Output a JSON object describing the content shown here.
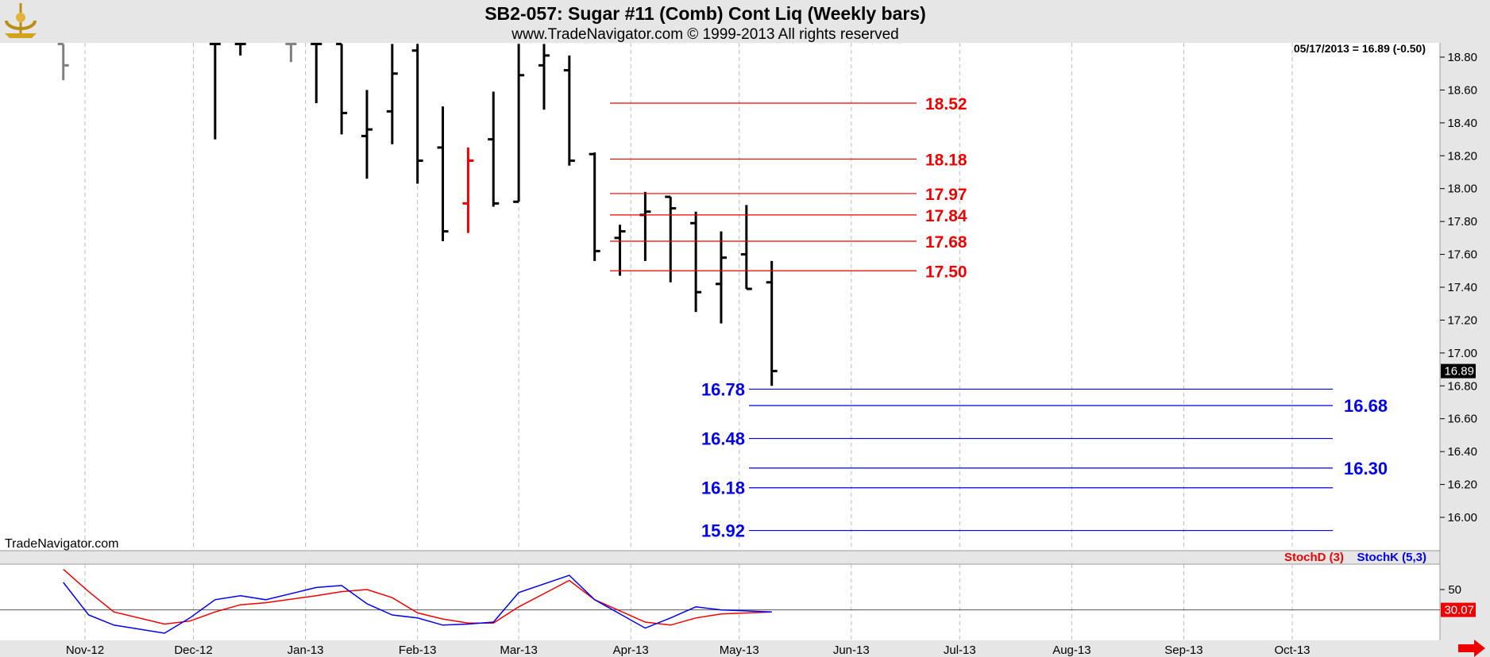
{
  "header": {
    "title": "SB2-057:  Sugar #11 (Comb) Cont Liq  (Weekly bars)",
    "subtitle": "www.TradeNavigator.com © 1999-2013 All rights reserved"
  },
  "watermark": "TradeNavigator.com",
  "last_quote": "05/17/2013 = 16.89 (-0.50)",
  "chart_data": [
    {
      "type": "ohlc",
      "title": "SB2-057:  Sugar #11 (Comb) Cont Liq  (Weekly bars)",
      "ylim": [
        15.85,
        18.88
      ],
      "y_ticks": [
        "18.80",
        "18.60",
        "18.40",
        "18.20",
        "18.00",
        "17.80",
        "17.60",
        "17.40",
        "17.20",
        "17.00",
        "16.80",
        "16.60",
        "16.40",
        "16.20",
        "16.00"
      ],
      "y_tick_values": [
        18.8,
        18.6,
        18.4,
        18.2,
        18.0,
        17.8,
        17.6,
        17.4,
        17.2,
        17.0,
        16.8,
        16.6,
        16.4,
        16.2,
        16.0
      ],
      "x_ticks": [
        "Nov-12",
        "Dec-12",
        "Jan-13",
        "Feb-13",
        "Mar-13",
        "Apr-13",
        "May-13",
        "Jun-13",
        "Jul-13",
        "Aug-13",
        "Sep-13",
        "Oct-13"
      ],
      "x_tick_dates": [
        "2012-11-01",
        "2012-12-01",
        "2013-01-01",
        "2013-02-01",
        "2013-03-01",
        "2013-04-01",
        "2013-05-01",
        "2013-06-01",
        "2013-07-01",
        "2013-08-01",
        "2013-09-01",
        "2013-10-01"
      ],
      "last_price_label": "16.89",
      "last_price": 16.89,
      "bars": [
        {
          "date": "2012-10-26",
          "high": 18.88,
          "low": 18.66,
          "open": 18.88,
          "close": 18.75,
          "color": "#808080"
        },
        {
          "date": "2012-12-07",
          "high": 18.88,
          "low": 18.3,
          "open": 18.88,
          "close": 18.88,
          "color": "#000000"
        },
        {
          "date": "2012-12-14",
          "high": 18.88,
          "low": 18.81,
          "open": 18.88,
          "close": 18.88,
          "color": "#000000"
        },
        {
          "date": "2012-12-28",
          "high": 18.88,
          "low": 18.77,
          "open": 18.88,
          "close": 18.88,
          "color": "#808080"
        },
        {
          "date": "2013-01-04",
          "high": 18.88,
          "low": 18.52,
          "open": 18.88,
          "close": 18.88,
          "color": "#000000"
        },
        {
          "date": "2013-01-11",
          "high": 18.88,
          "low": 18.33,
          "open": 18.88,
          "close": 18.46,
          "color": "#000000"
        },
        {
          "date": "2013-01-18",
          "high": 18.6,
          "low": 18.06,
          "open": 18.32,
          "close": 18.36,
          "color": "#000000"
        },
        {
          "date": "2013-01-25",
          "high": 18.88,
          "low": 18.27,
          "open": 18.47,
          "close": 18.7,
          "color": "#000000"
        },
        {
          "date": "2013-02-01",
          "high": 18.88,
          "low": 18.03,
          "open": 18.84,
          "close": 18.17,
          "color": "#000000"
        },
        {
          "date": "2013-02-08",
          "high": 18.5,
          "low": 17.68,
          "open": 18.25,
          "close": 17.74,
          "color": "#000000"
        },
        {
          "date": "2013-02-15",
          "high": 18.25,
          "low": 17.73,
          "open": 17.91,
          "close": 18.17,
          "color": "#ee0000"
        },
        {
          "date": "2013-02-22",
          "high": 18.59,
          "low": 17.89,
          "open": 18.3,
          "close": 17.91,
          "color": "#000000"
        },
        {
          "date": "2013-03-01",
          "high": 18.88,
          "low": 17.92,
          "open": 17.92,
          "close": 18.69,
          "color": "#000000"
        },
        {
          "date": "2013-03-08",
          "high": 18.88,
          "low": 18.48,
          "open": 18.75,
          "close": 18.81,
          "color": "#000000"
        },
        {
          "date": "2013-03-15",
          "high": 18.81,
          "low": 18.14,
          "open": 18.72,
          "close": 18.17,
          "color": "#000000"
        },
        {
          "date": "2013-03-22",
          "high": 18.22,
          "low": 17.56,
          "open": 18.21,
          "close": 17.62,
          "color": "#000000"
        },
        {
          "date": "2013-03-29",
          "high": 17.78,
          "low": 17.47,
          "open": 17.7,
          "close": 17.74,
          "color": "#000000"
        },
        {
          "date": "2013-04-05",
          "high": 17.98,
          "low": 17.56,
          "open": 17.84,
          "close": 17.86,
          "color": "#000000"
        },
        {
          "date": "2013-04-12",
          "high": 17.95,
          "low": 17.43,
          "open": 17.95,
          "close": 17.88,
          "color": "#000000"
        },
        {
          "date": "2013-04-19",
          "high": 17.86,
          "low": 17.25,
          "open": 17.79,
          "close": 17.37,
          "color": "#000000"
        },
        {
          "date": "2013-04-26",
          "high": 17.74,
          "low": 17.18,
          "open": 17.42,
          "close": 17.58,
          "color": "#000000"
        },
        {
          "date": "2013-05-03",
          "high": 17.9,
          "low": 17.39,
          "open": 17.6,
          "close": 17.39,
          "color": "#000000"
        },
        {
          "date": "2013-05-10",
          "high": 17.56,
          "low": 16.8,
          "open": 17.43,
          "close": 16.89,
          "color": "#000000"
        }
      ],
      "resistance_levels": [
        18.52,
        18.18,
        17.97,
        17.84,
        17.68,
        17.5
      ],
      "resistance_labels": [
        "18.52",
        "18.18",
        "17.97",
        "17.84",
        "17.68",
        "17.50"
      ],
      "support_levels_left": [
        16.78,
        16.48,
        16.18,
        15.92
      ],
      "support_labels_left": [
        "16.78",
        "16.48",
        "16.18",
        "15.92"
      ],
      "support_levels_right": [
        16.68,
        16.3
      ],
      "support_labels_right": [
        "16.68",
        "16.30"
      ],
      "level_colors": {
        "resistance": "#ee0000",
        "support": "#0000ee"
      }
    },
    {
      "type": "line",
      "series": [
        {
          "name": "StochD (3)",
          "color": "#ee0000",
          "values": [
            70,
            48,
            28,
            16,
            19,
            28,
            35,
            37,
            44,
            48,
            50,
            42,
            27,
            21,
            17,
            17,
            33,
            59,
            40,
            18,
            15,
            22,
            26,
            28
          ]
        },
        {
          "name": "StochK (5,3)",
          "color": "#0000ee",
          "values": [
            57,
            25,
            15,
            7,
            22,
            40,
            44,
            40,
            52,
            54,
            36,
            25,
            22,
            15,
            16,
            18,
            47,
            64,
            40,
            12,
            22,
            33,
            30,
            28
          ]
        }
      ],
      "x_dates": [
        "2012-10-26",
        "2012-11-02",
        "2012-11-09",
        "2012-11-23",
        "2012-11-30",
        "2012-12-07",
        "2012-12-14",
        "2012-12-21",
        "2013-01-04",
        "2013-01-11",
        "2013-01-18",
        "2013-01-25",
        "2013-02-01",
        "2013-02-08",
        "2013-02-15",
        "2013-02-22",
        "2013-03-01",
        "2013-03-15",
        "2013-03-22",
        "2013-04-05",
        "2013-04-12",
        "2013-04-19",
        "2013-04-26",
        "2013-05-10"
      ],
      "ylim": [
        0,
        75
      ],
      "y_ticks": [
        "50"
      ],
      "y_tick_values": [
        50
      ],
      "reference_line": 30,
      "last_value_label": "30.07"
    }
  ]
}
